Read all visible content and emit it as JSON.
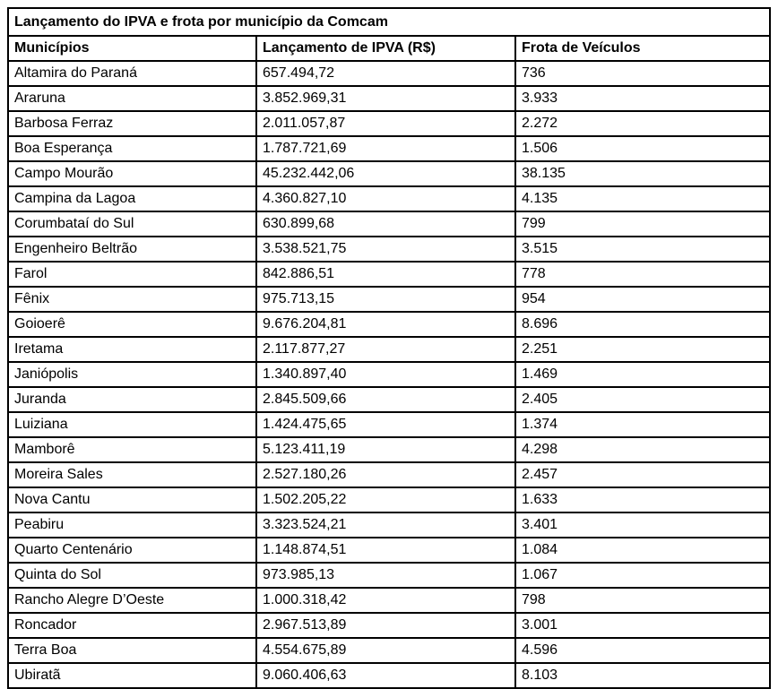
{
  "colors": {
    "text": "#000000",
    "background": "#ffffff",
    "border": "#000000"
  },
  "table": {
    "title": "Lançamento do IPVA e frota por município da Comcam",
    "columns": [
      "Municípios",
      "Lançamento de IPVA (R$)",
      "Frota de Veículos"
    ],
    "rows": [
      {
        "municipio": "Altamira do Paraná",
        "ipva": "657.494,72",
        "frota": "736"
      },
      {
        "municipio": "Araruna",
        "ipva": "3.852.969,31",
        "frota": "3.933"
      },
      {
        "municipio": "Barbosa Ferraz",
        "ipva": "2.011.057,87",
        "frota": "2.272"
      },
      {
        "municipio": "Boa Esperança",
        "ipva": "1.787.721,69",
        "frota": "1.506"
      },
      {
        "municipio": "Campo Mourão",
        "ipva": "45.232.442,06",
        "frota": "38.135"
      },
      {
        "municipio": "Campina da Lagoa",
        "ipva": "4.360.827,10",
        "frota": "4.135"
      },
      {
        "municipio": "Corumbataí do Sul",
        "ipva": "630.899,68",
        "frota": "799"
      },
      {
        "municipio": "Engenheiro Beltrão",
        "ipva": "3.538.521,75",
        "frota": "3.515"
      },
      {
        "municipio": "Farol",
        "ipva": "842.886,51",
        "frota": "778"
      },
      {
        "municipio": "Fênix",
        "ipva": "975.713,15",
        "frota": "954"
      },
      {
        "municipio": "Goioerê",
        "ipva": "9.676.204,81",
        "frota": "8.696"
      },
      {
        "municipio": "Iretama",
        "ipva": "2.117.877,27",
        "frota": "2.251"
      },
      {
        "municipio": "Janiópolis",
        "ipva": "1.340.897,40",
        "frota": "1.469"
      },
      {
        "municipio": "Juranda",
        "ipva": "2.845.509,66",
        "frota": "2.405"
      },
      {
        "municipio": "Luiziana",
        "ipva": "1.424.475,65",
        "frota": "1.374"
      },
      {
        "municipio": "Mamborê",
        "ipva": "5.123.411,19",
        "frota": "4.298"
      },
      {
        "municipio": "Moreira Sales",
        "ipva": "2.527.180,26",
        "frota": "2.457"
      },
      {
        "municipio": "Nova Cantu",
        "ipva": "1.502.205,22",
        "frota": "1.633"
      },
      {
        "municipio": "Peabiru",
        "ipva": "3.323.524,21",
        "frota": "3.401"
      },
      {
        "municipio": "Quarto Centenário",
        "ipva": "1.148.874,51",
        "frota": "1.084"
      },
      {
        "municipio": "Quinta do Sol",
        "ipva": "973.985,13",
        "frota": "1.067"
      },
      {
        "municipio": "Rancho Alegre D’Oeste",
        "ipva": "1.000.318,42",
        "frota": "798"
      },
      {
        "municipio": "Roncador",
        "ipva": "2.967.513,89",
        "frota": "3.001"
      },
      {
        "municipio": "Terra Boa",
        "ipva": "4.554.675,89",
        "frota": "4.596"
      },
      {
        "municipio": "Ubiratã",
        "ipva": "9.060.406,63",
        "frota": "8.103"
      }
    ]
  }
}
